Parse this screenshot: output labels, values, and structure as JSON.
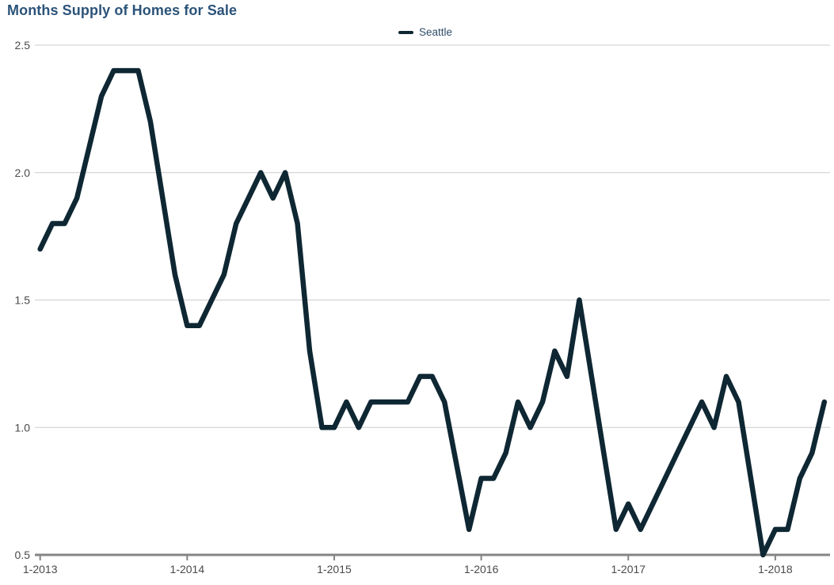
{
  "page_title": "Months Supply of Homes for Sale",
  "legend": {
    "items": [
      {
        "label": "Seattle",
        "color": "#0e2733"
      }
    ]
  },
  "chart_data": {
    "type": "line",
    "title": "Months Supply of Homes for Sale",
    "x": [
      "1-2013",
      "2-2013",
      "3-2013",
      "4-2013",
      "5-2013",
      "6-2013",
      "7-2013",
      "8-2013",
      "9-2013",
      "10-2013",
      "11-2013",
      "12-2013",
      "1-2014",
      "2-2014",
      "3-2014",
      "4-2014",
      "5-2014",
      "6-2014",
      "7-2014",
      "8-2014",
      "9-2014",
      "10-2014",
      "11-2014",
      "12-2014",
      "1-2015",
      "2-2015",
      "3-2015",
      "4-2015",
      "5-2015",
      "6-2015",
      "7-2015",
      "8-2015",
      "9-2015",
      "10-2015",
      "11-2015",
      "12-2015",
      "1-2016",
      "2-2016",
      "3-2016",
      "4-2016",
      "5-2016",
      "6-2016",
      "7-2016",
      "8-2016",
      "9-2016",
      "10-2016",
      "11-2016",
      "12-2016",
      "1-2017",
      "2-2017",
      "3-2017",
      "4-2017",
      "5-2017",
      "6-2017",
      "7-2017",
      "8-2017",
      "9-2017",
      "10-2017",
      "11-2017",
      "12-2017",
      "1-2018",
      "2-2018",
      "3-2018",
      "4-2018",
      "5-2018"
    ],
    "x_tick_labels": [
      "1-2013",
      "1-2014",
      "1-2015",
      "1-2016",
      "1-2017",
      "1-2018"
    ],
    "series": [
      {
        "name": "Seattle",
        "color": "#0e2733",
        "values": [
          1.7,
          1.8,
          1.8,
          1.9,
          2.1,
          2.3,
          2.4,
          2.4,
          2.4,
          2.2,
          1.9,
          1.6,
          1.4,
          1.4,
          1.5,
          1.6,
          1.8,
          1.9,
          2.0,
          1.9,
          2.0,
          1.8,
          1.3,
          1.0,
          1.0,
          1.1,
          1.0,
          1.1,
          1.1,
          1.1,
          1.1,
          1.2,
          1.2,
          1.1,
          0.85,
          0.6,
          0.8,
          0.8,
          0.9,
          1.1,
          1.0,
          1.1,
          1.3,
          1.2,
          1.5,
          1.2,
          0.9,
          0.6,
          0.7,
          0.6,
          0.7,
          0.8,
          0.9,
          1.0,
          1.1,
          1.0,
          1.2,
          1.1,
          0.8,
          0.5,
          0.6,
          0.6,
          0.8,
          0.9,
          1.1
        ]
      }
    ],
    "xlabel": "",
    "ylabel": "",
    "ylim": [
      0.5,
      2.5
    ],
    "y_ticks": [
      0.5,
      1.0,
      1.5,
      2.0,
      2.5
    ],
    "grid": "horizontal",
    "legend_position": "top-center",
    "colors": {
      "title": "#2b5379",
      "legend_label": "#2e4d68",
      "line": "#0e2733",
      "gridline": "#cccccc",
      "axis": "#858585",
      "tick_label": "#4a4a4a"
    }
  }
}
